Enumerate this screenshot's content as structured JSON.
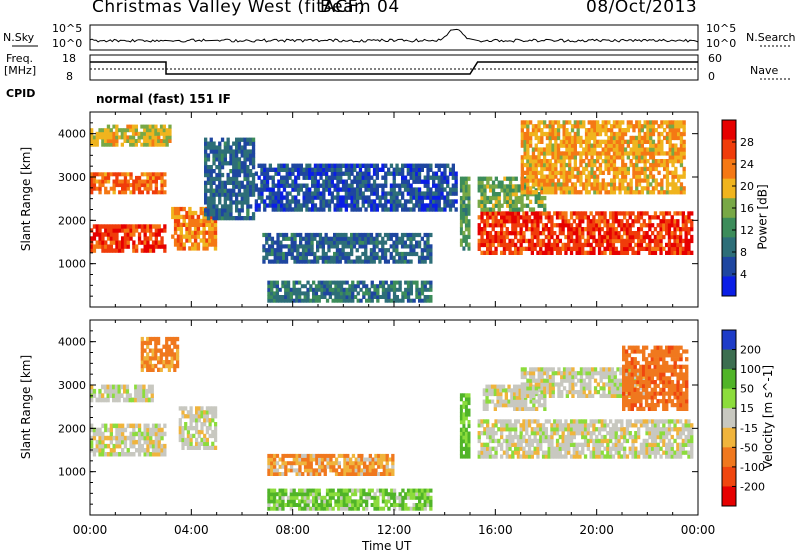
{
  "header": {
    "station": "Christmas Valley West (fitACF)",
    "beam": "Beam 04",
    "date": "08/Oct/2013"
  },
  "top_panels": {
    "nsky_label": "N.Sky",
    "nsky_ticks": [
      "10^5",
      "10^0"
    ],
    "nsearch_label": "N.Search",
    "nsearch_ticks": [
      "10^5",
      "10^0"
    ],
    "freq_label": "Freq.",
    "freq_unit": "[MHz]",
    "freq_ticks": [
      "18",
      "8"
    ],
    "nave_label": "Nave",
    "nave_ticks": [
      "60",
      "0"
    ],
    "cpid_label": "CPID",
    "cpid_value": "normal (fast) 151 IF"
  },
  "chart_data": [
    {
      "type": "heatmap",
      "panel": "power",
      "ylabel": "Slant Range [km]",
      "y_ticks": [
        "1000",
        "2000",
        "3000",
        "4000"
      ],
      "ylim": [
        0,
        4500
      ],
      "x_ticks": [
        "00:00",
        "04:00",
        "08:00",
        "12:00",
        "16:00",
        "20:00",
        "00:00"
      ],
      "colorbar": {
        "label": "Power [dB]",
        "ticks": [
          "4",
          "8",
          "12",
          "16",
          "20",
          "24",
          "28"
        ],
        "colors": [
          "#0a1ee6",
          "#1e46a0",
          "#2d6e78",
          "#3c8c5a",
          "#78a846",
          "#f0b41e",
          "#f57814",
          "#f03c0a",
          "#e60000"
        ]
      },
      "regions": [
        {
          "t0": 0.0,
          "t1": 3.0,
          "r0": 1250,
          "r1": 1900,
          "level": 27
        },
        {
          "t0": 0.0,
          "t1": 3.0,
          "r0": 2600,
          "r1": 3100,
          "level": 24
        },
        {
          "t0": 0.0,
          "t1": 3.2,
          "r0": 3700,
          "r1": 4200,
          "level": 18
        },
        {
          "t0": 3.2,
          "t1": 5.0,
          "r0": 1300,
          "r1": 2300,
          "level": 22
        },
        {
          "t0": 4.5,
          "t1": 6.5,
          "r0": 2000,
          "r1": 3900,
          "level": 6
        },
        {
          "t0": 6.5,
          "t1": 14.5,
          "r0": 2200,
          "r1": 3300,
          "level": 4
        },
        {
          "t0": 6.8,
          "t1": 13.5,
          "r0": 1000,
          "r1": 1700,
          "level": 6
        },
        {
          "t0": 7.0,
          "t1": 13.5,
          "r0": 100,
          "r1": 600,
          "level": 8
        },
        {
          "t0": 14.6,
          "t1": 15.0,
          "r0": 1300,
          "r1": 3000,
          "level": 12
        },
        {
          "t0": 15.3,
          "t1": 23.8,
          "r0": 1200,
          "r1": 2200,
          "level": 27
        },
        {
          "t0": 15.3,
          "t1": 18.0,
          "r0": 2200,
          "r1": 3000,
          "level": 14
        },
        {
          "t0": 17.0,
          "t1": 23.5,
          "r0": 2600,
          "r1": 4300,
          "level": 20
        }
      ]
    },
    {
      "type": "heatmap",
      "panel": "velocity",
      "ylabel": "Slant Range [km]",
      "y_ticks": [
        "1000",
        "2000",
        "3000",
        "4000"
      ],
      "ylim": [
        0,
        4500
      ],
      "x_ticks": [
        "00:00",
        "04:00",
        "08:00",
        "12:00",
        "16:00",
        "20:00",
        "00:00"
      ],
      "xlabel": "Time UT",
      "colorbar": {
        "label": "Velocity [m s^-1]",
        "ticks": [
          "200",
          "100",
          "50",
          "15",
          "-15",
          "-50",
          "-100",
          "-200"
        ],
        "colors": [
          "#1e3cc8",
          "#3c6e50",
          "#50b428",
          "#8cdc3c",
          "#c8c8c0",
          "#f0b43c",
          "#f0781e",
          "#f0460f",
          "#e60000"
        ]
      },
      "regions": [
        {
          "t0": 0.0,
          "t1": 3.0,
          "r0": 1350,
          "r1": 2100,
          "level": 0
        },
        {
          "t0": 0.0,
          "t1": 2.5,
          "r0": 2600,
          "r1": 3000,
          "level": 0
        },
        {
          "t0": 2.0,
          "t1": 3.5,
          "r0": 3300,
          "r1": 4100,
          "level": -40
        },
        {
          "t0": 3.5,
          "t1": 5.0,
          "r0": 1500,
          "r1": 2500,
          "level": 0
        },
        {
          "t0": 7.0,
          "t1": 12.0,
          "r0": 900,
          "r1": 1400,
          "level": -30
        },
        {
          "t0": 7.0,
          "t1": 13.5,
          "r0": 100,
          "r1": 600,
          "level": 30
        },
        {
          "t0": 14.6,
          "t1": 15.0,
          "r0": 1300,
          "r1": 2800,
          "level": 40
        },
        {
          "t0": 15.3,
          "t1": 23.8,
          "r0": 1300,
          "r1": 2200,
          "level": 0
        },
        {
          "t0": 15.5,
          "t1": 18.0,
          "r0": 2400,
          "r1": 3000,
          "level": 0
        },
        {
          "t0": 17.0,
          "t1": 22.0,
          "r0": 2700,
          "r1": 3400,
          "level": 0
        },
        {
          "t0": 21.0,
          "t1": 23.6,
          "r0": 2400,
          "r1": 3900,
          "level": -60
        }
      ]
    }
  ]
}
